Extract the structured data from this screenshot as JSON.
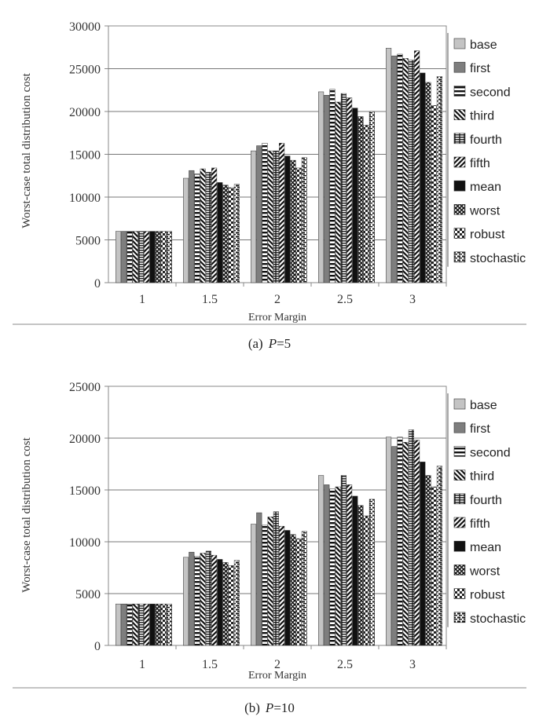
{
  "chart_data": [
    {
      "type": "bar",
      "caption": "(a) P=5",
      "caption_prefix": "(a)",
      "caption_var": "P",
      "caption_val": "=5",
      "xlabel": "Error Margin",
      "ylabel": "Worst-case total distribution cost",
      "categories": [
        "1",
        "1.5",
        "2",
        "2.5",
        "3"
      ],
      "ylim": [
        0,
        30000
      ],
      "yticks": [
        0,
        5000,
        10000,
        15000,
        20000,
        25000,
        30000
      ],
      "grid": true,
      "legend_position": "right",
      "series": [
        {
          "name": "base",
          "values": [
            6000,
            12200,
            15400,
            22300,
            27400
          ]
        },
        {
          "name": "first",
          "values": [
            6000,
            13100,
            16000,
            21900,
            26500
          ]
        },
        {
          "name": "second",
          "values": [
            6000,
            12700,
            16300,
            22600,
            26700
          ]
        },
        {
          "name": "third",
          "values": [
            6000,
            13300,
            15400,
            21100,
            26200
          ]
        },
        {
          "name": "fourth",
          "values": [
            6000,
            12900,
            15400,
            22100,
            26000
          ]
        },
        {
          "name": "fifth",
          "values": [
            6000,
            13400,
            16300,
            21600,
            27100
          ]
        },
        {
          "name": "mean",
          "values": [
            6000,
            11700,
            14800,
            20400,
            24500
          ]
        },
        {
          "name": "worst",
          "values": [
            6000,
            11400,
            14300,
            19400,
            23400
          ]
        },
        {
          "name": "robust",
          "values": [
            6000,
            11100,
            13400,
            18400,
            20700
          ]
        },
        {
          "name": "stochastic",
          "values": [
            6000,
            11500,
            14600,
            20000,
            24100
          ]
        }
      ]
    },
    {
      "type": "bar",
      "caption": "(b) P=10",
      "caption_prefix": "(b)",
      "caption_var": "P",
      "caption_val": "=10",
      "xlabel": "Error Margin",
      "ylabel": "Worst-case total distribution cost",
      "categories": [
        "1",
        "1.5",
        "2",
        "2.5",
        "3"
      ],
      "ylim": [
        0,
        25000
      ],
      "yticks": [
        0,
        5000,
        10000,
        15000,
        20000,
        25000
      ],
      "grid": true,
      "legend_position": "right",
      "series": [
        {
          "name": "base",
          "values": [
            4000,
            8500,
            11700,
            16400,
            20100
          ]
        },
        {
          "name": "first",
          "values": [
            4000,
            9000,
            12800,
            15500,
            19200
          ]
        },
        {
          "name": "second",
          "values": [
            4000,
            8600,
            11600,
            15100,
            20100
          ]
        },
        {
          "name": "third",
          "values": [
            4000,
            8900,
            12400,
            15300,
            19600
          ]
        },
        {
          "name": "fourth",
          "values": [
            4000,
            9100,
            12900,
            16400,
            20800
          ]
        },
        {
          "name": "fifth",
          "values": [
            4000,
            8700,
            11500,
            15500,
            19800
          ]
        },
        {
          "name": "mean",
          "values": [
            4000,
            8300,
            11100,
            14400,
            17700
          ]
        },
        {
          "name": "worst",
          "values": [
            4000,
            8000,
            10700,
            13500,
            16400
          ]
        },
        {
          "name": "robust",
          "values": [
            4000,
            7700,
            10300,
            12500,
            15300
          ]
        },
        {
          "name": "stochastic",
          "values": [
            4000,
            8200,
            11000,
            14100,
            17300
          ]
        }
      ]
    }
  ],
  "colors": {
    "base": "#c4c4c4",
    "first": "#7e7e7e",
    "black": "#111111",
    "axis": "#888888",
    "grid": "#777777"
  },
  "patterns": [
    "solid-light",
    "solid-dark",
    "hstripe",
    "diag-bs",
    "grid",
    "diag-fs",
    "solid-black",
    "cross",
    "checker",
    "dashes"
  ]
}
